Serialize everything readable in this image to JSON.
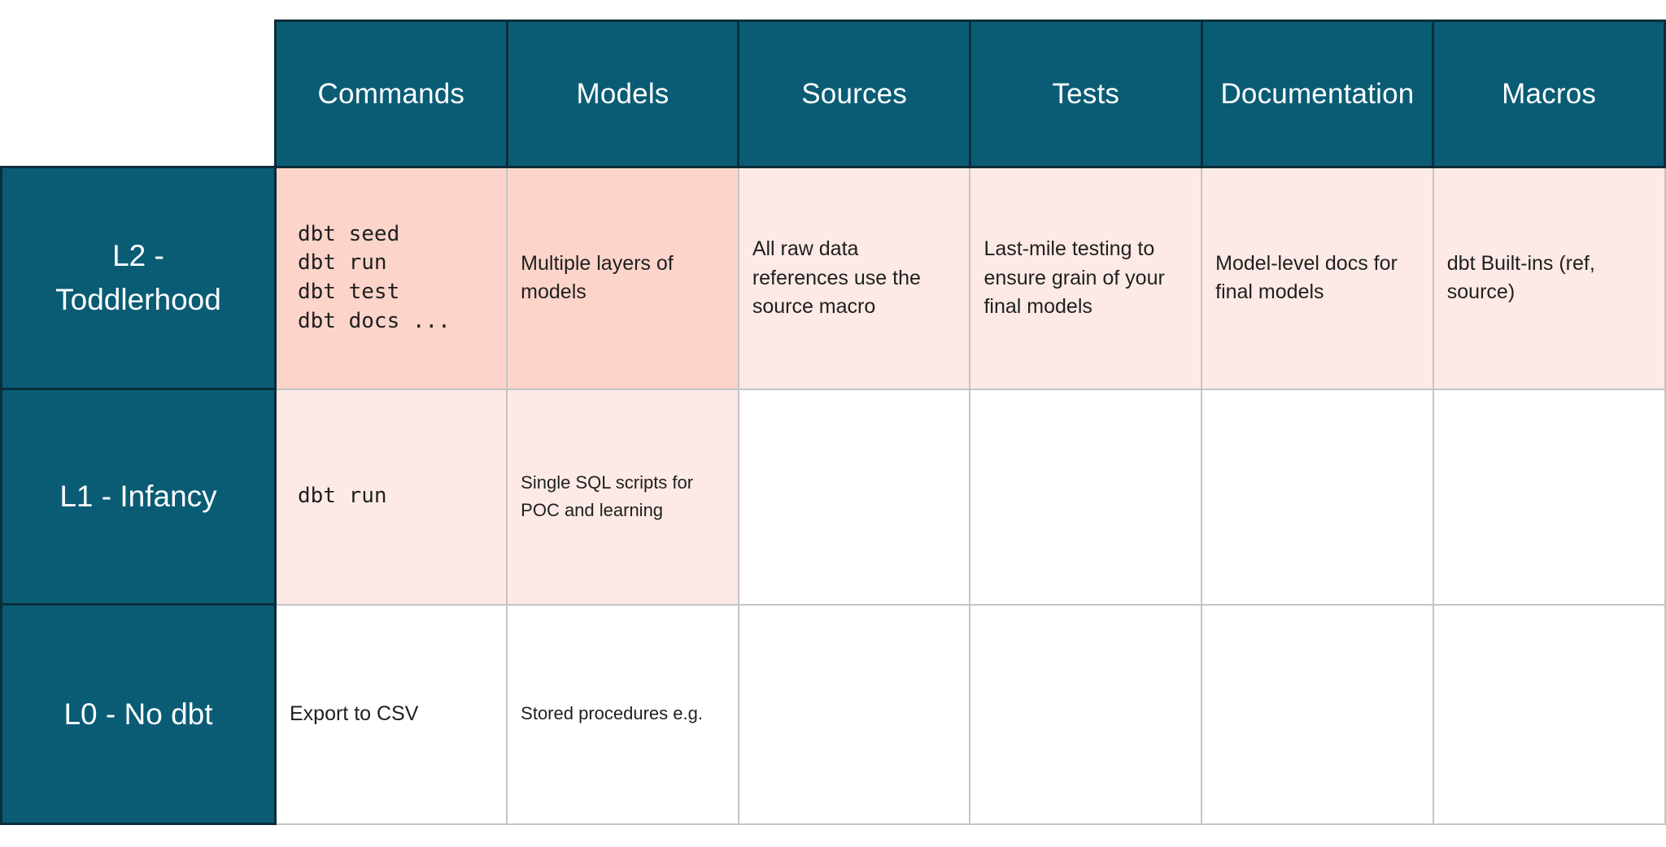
{
  "colors": {
    "header_teal": "#0a5c75",
    "dark_border": "#0a2d3a",
    "strong_pink": "#fcd4ca",
    "light_pink": "#fdeae6",
    "grid_gray": "#c4c4c4",
    "cell_text": "#1f1f1f",
    "header_text": "#ffffff"
  },
  "chart_data": {
    "type": "table",
    "columns": [
      "Commands",
      "Models",
      "Sources",
      "Tests",
      "Documentation",
      "Macros"
    ],
    "row_labels": [
      "L2 -\nToddlerhood",
      "L1 - Infancy",
      "L0 - No dbt"
    ],
    "cells": [
      [
        "dbt seed\ndbt run\ndbt test\ndbt docs ...",
        "Multiple layers of models",
        "All raw data references use the source macro",
        "Last-mile testing to ensure grain of your final models",
        "Model-level docs for final models",
        "dbt Built-ins (ref, source)"
      ],
      [
        "dbt run",
        "Single SQL scripts for POC and learning",
        "",
        "",
        "",
        ""
      ],
      [
        "Export to CSV",
        "Stored procedures e.g.",
        "",
        "",
        "",
        ""
      ]
    ],
    "shading": [
      [
        "strong",
        "strong",
        "light",
        "light",
        "light",
        "light"
      ],
      [
        "light",
        "light",
        "none",
        "none",
        "none",
        "none"
      ],
      [
        "none",
        "none",
        "none",
        "none",
        "none",
        "none"
      ]
    ]
  }
}
